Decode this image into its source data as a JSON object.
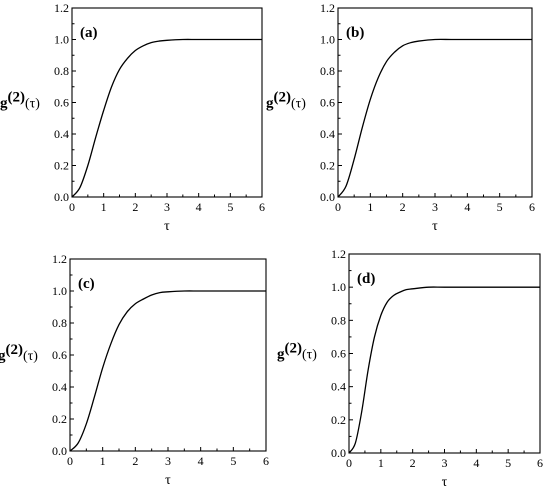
{
  "chart_data": [
    {
      "type": "line",
      "panel_label": "(a)",
      "ylabel": "g(2)(τ)",
      "ylabel_main": "g",
      "ylabel_sup": "(2)",
      "ylabel_arg": "(τ)",
      "xlabel": "τ",
      "xlim": [
        0,
        6
      ],
      "ylim": [
        0,
        1.2
      ],
      "xticks": [
        "0",
        "1",
        "2",
        "3",
        "4",
        "5",
        "6"
      ],
      "yticks": [
        "0.0",
        "0.2",
        "0.4",
        "0.6",
        "0.8",
        "1.0",
        "1.2"
      ],
      "x": [
        0,
        0.25,
        0.5,
        0.75,
        1.0,
        1.25,
        1.5,
        1.75,
        2.0,
        2.25,
        2.5,
        2.75,
        3.0,
        3.5,
        4.0,
        5.0,
        6.0
      ],
      "y": [
        0.0,
        0.06,
        0.2,
        0.38,
        0.55,
        0.7,
        0.81,
        0.88,
        0.93,
        0.96,
        0.98,
        0.99,
        0.995,
        1.0,
        1.0,
        1.0,
        1.0
      ]
    },
    {
      "type": "line",
      "panel_label": "(b)",
      "ylabel": "g(2)(τ)",
      "ylabel_main": "g",
      "ylabel_sup": "(2)",
      "ylabel_arg": "(τ)",
      "xlabel": "τ",
      "xlim": [
        0,
        6
      ],
      "ylim": [
        0,
        1.2
      ],
      "xticks": [
        "0",
        "1",
        "2",
        "3",
        "4",
        "5",
        "6"
      ],
      "yticks": [
        "0.0",
        "0.2",
        "0.4",
        "0.6",
        "0.8",
        "1.0",
        "1.2"
      ],
      "x": [
        0,
        0.25,
        0.5,
        0.75,
        1.0,
        1.25,
        1.5,
        1.75,
        2.0,
        2.25,
        2.5,
        3.0,
        3.5,
        4.0,
        5.0,
        6.0
      ],
      "y": [
        0.0,
        0.07,
        0.24,
        0.44,
        0.62,
        0.76,
        0.86,
        0.92,
        0.96,
        0.98,
        0.99,
        1.0,
        1.0,
        1.0,
        1.0,
        1.0
      ]
    },
    {
      "type": "line",
      "panel_label": "(c)",
      "ylabel": "g(2)(τ)",
      "ylabel_main": "g",
      "ylabel_sup": "(2)",
      "ylabel_arg": "(τ)",
      "xlabel": "τ",
      "xlim": [
        0,
        6
      ],
      "ylim": [
        0,
        1.2
      ],
      "xticks": [
        "0",
        "1",
        "2",
        "3",
        "4",
        "5",
        "6"
      ],
      "yticks": [
        "0.0",
        "0.2",
        "0.4",
        "0.6",
        "0.8",
        "1.0",
        "1.2"
      ],
      "x": [
        0,
        0.25,
        0.5,
        0.75,
        1.0,
        1.25,
        1.5,
        1.75,
        2.0,
        2.25,
        2.5,
        2.75,
        3.0,
        3.5,
        4.0,
        5.0,
        6.0
      ],
      "y": [
        0.0,
        0.05,
        0.17,
        0.34,
        0.52,
        0.67,
        0.79,
        0.87,
        0.92,
        0.95,
        0.975,
        0.99,
        0.995,
        1.0,
        1.0,
        1.0,
        1.0
      ]
    },
    {
      "type": "line",
      "panel_label": "(d)",
      "ylabel": "g(2)(τ)",
      "ylabel_main": "g",
      "ylabel_sup": "(2)",
      "ylabel_arg": "(τ)",
      "xlabel": "τ",
      "xlim": [
        0,
        6
      ],
      "ylim": [
        0,
        1.2
      ],
      "xticks": [
        "0",
        "1",
        "2",
        "3",
        "4",
        "5",
        "6"
      ],
      "yticks": [
        "0.0",
        "0.2",
        "0.4",
        "0.6",
        "0.8",
        "1.0",
        "1.2"
      ],
      "x": [
        0,
        0.2,
        0.4,
        0.6,
        0.8,
        1.0,
        1.2,
        1.4,
        1.6,
        1.8,
        2.0,
        2.5,
        3.0,
        4.0,
        5.0,
        6.0
      ],
      "y": [
        0.0,
        0.06,
        0.25,
        0.5,
        0.7,
        0.83,
        0.91,
        0.95,
        0.97,
        0.985,
        0.99,
        1.0,
        1.0,
        1.0,
        1.0,
        1.0
      ]
    }
  ]
}
